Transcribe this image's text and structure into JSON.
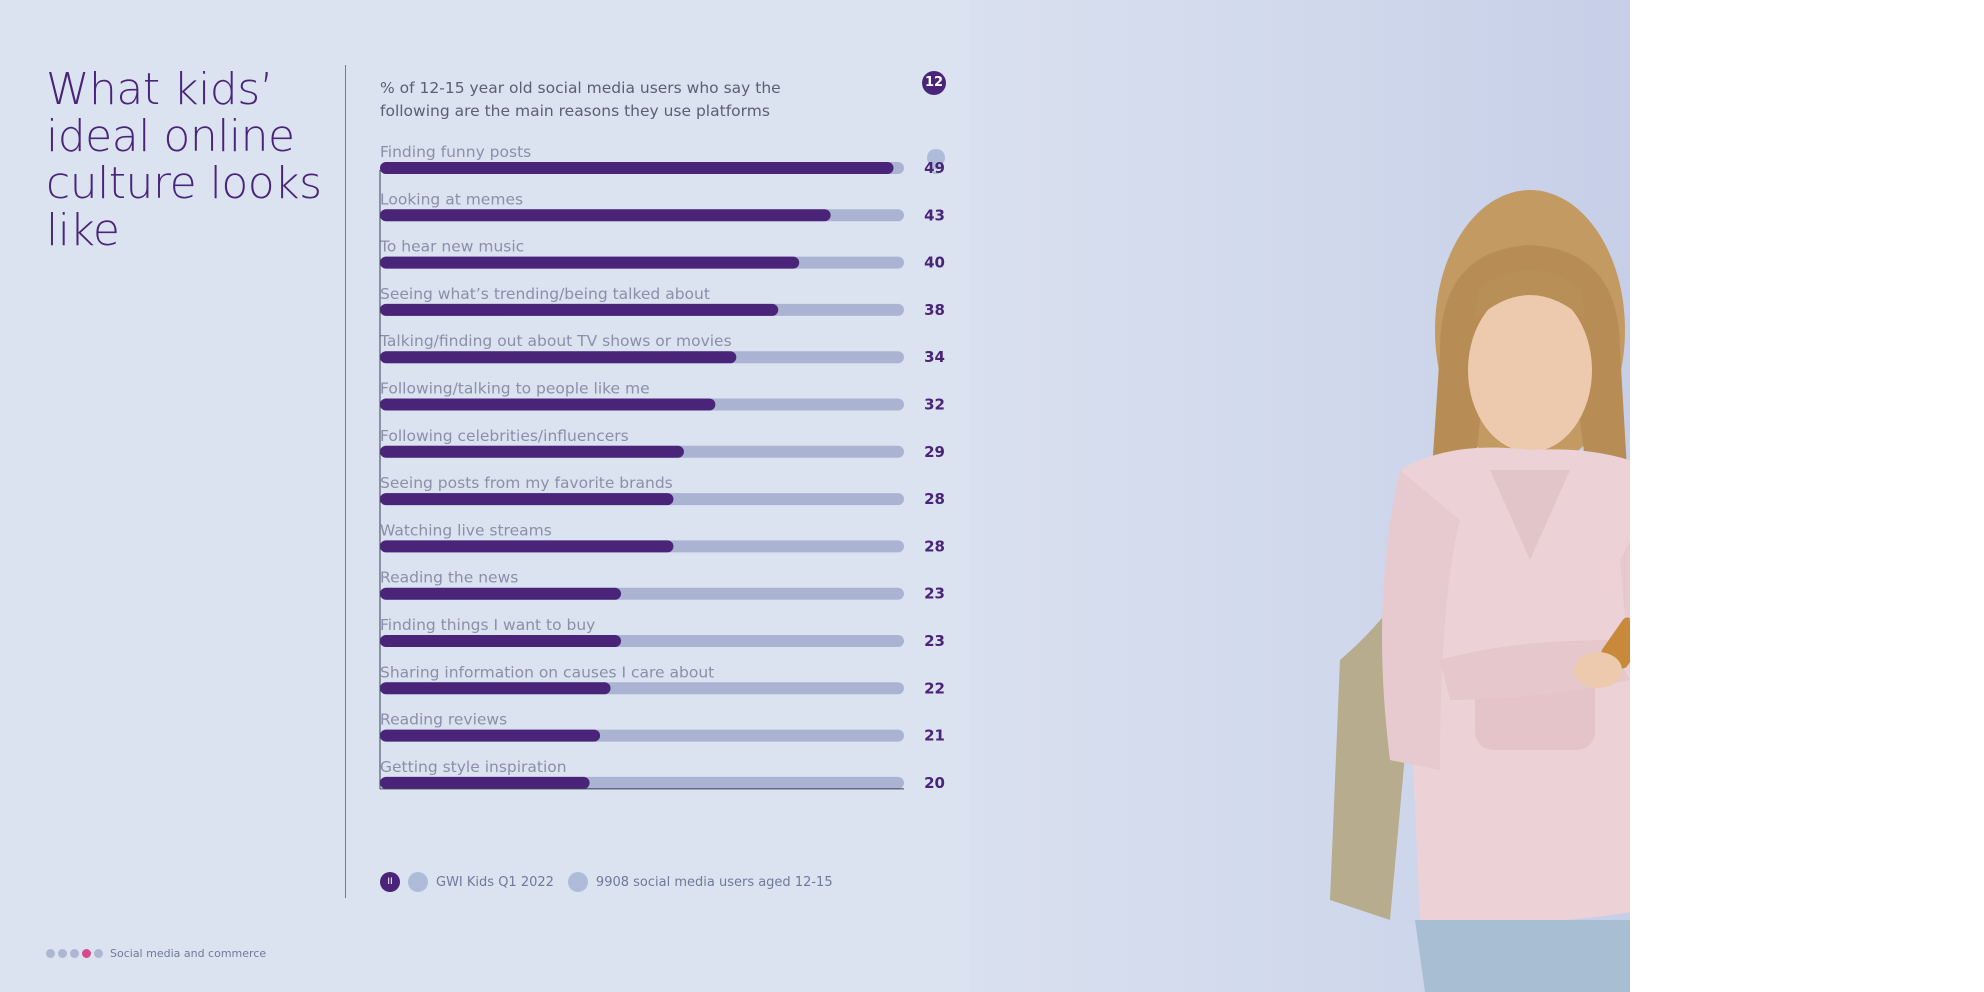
{
  "title": "What kids’ ideal online culture looks like",
  "subtitle": "% of 12-15 year old social media users who say the following are the main reasons they use platforms",
  "page_number": "12",
  "legend": {
    "pause_icon_glyph": "II",
    "source": "GWI Kids Q1 2022",
    "base": "9908 social media users aged 12-15"
  },
  "footer": {
    "section": "Social media and commerce"
  },
  "colors": {
    "accent": "#4a2479",
    "track": "#aab4d2",
    "background": "#dbe3f0"
  },
  "chart_data": {
    "type": "bar",
    "orientation": "horizontal",
    "title": "% of 12-15 year old social media users who say the following are the main reasons they use platforms",
    "xlim": [
      0,
      50
    ],
    "categories": [
      "Finding funny posts",
      "Looking at memes",
      "To hear new music",
      "Seeing what’s trending/being talked about",
      "Talking/finding out about TV shows or movies",
      "Following/talking to people like me",
      "Following celebrities/influencers",
      "Seeing posts from my favorite brands",
      "Watching live streams",
      "Reading the news",
      "Finding things I want to buy",
      "Sharing information on causes I care about",
      "Reading reviews",
      "Getting style inspiration"
    ],
    "values": [
      49,
      43,
      40,
      38,
      34,
      32,
      29,
      28,
      28,
      23,
      23,
      22,
      21,
      20
    ]
  }
}
